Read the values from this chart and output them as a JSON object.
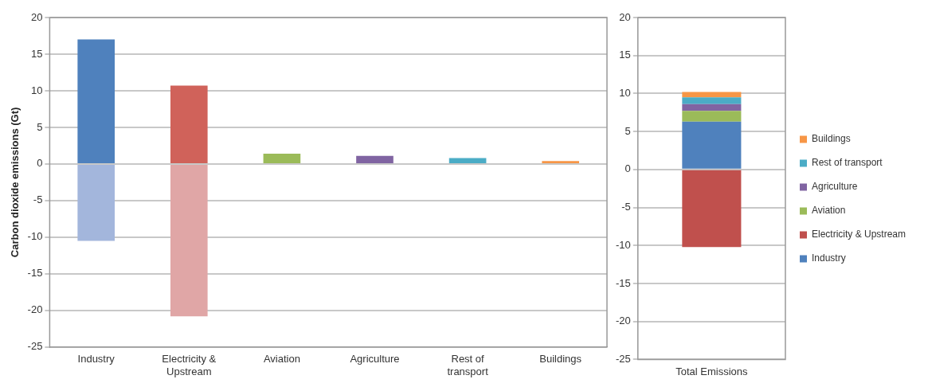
{
  "chart_data": [
    {
      "type": "bar",
      "stacked": true,
      "categories": [
        "Industry",
        "Electricity & Upstream",
        "Aviation",
        "Agriculture",
        "Rest of transport",
        "Buildings"
      ],
      "ylabel": "Carbon dioxide emissions (Gt)",
      "ylim": [
        -25,
        20
      ],
      "yticks": [
        -25,
        -20,
        -15,
        -10,
        -5,
        0,
        5,
        10,
        15,
        20
      ],
      "grid": "y",
      "legend": false,
      "series": [
        {
          "colors": [
            "#4f81bd",
            "#d0625a",
            "#9bbb59",
            "#8064a2",
            "#4bacc6",
            "#f79646"
          ],
          "values": [
            17,
            10.7,
            1.4,
            1.1,
            0.8,
            0.4
          ]
        },
        {
          "colors": [
            "#a3b6dc",
            "#e0a6a6",
            null,
            null,
            null,
            null
          ],
          "values": [
            -10.5,
            -20.8,
            null,
            null,
            null,
            null
          ]
        }
      ]
    },
    {
      "type": "bar",
      "stacked": true,
      "categories": [
        "Total Emissions"
      ],
      "ylim": [
        -25,
        20
      ],
      "yticks": [
        -25,
        -20,
        -15,
        -10,
        -5,
        0,
        5,
        10,
        15,
        20
      ],
      "grid": "y",
      "legend": "right",
      "series": [
        {
          "name": "Industry",
          "color": "#4f81bd",
          "values": [
            6.3
          ]
        },
        {
          "name": "Electricity & Upstream",
          "color": "#c0504d",
          "values": [
            -10.2
          ]
        },
        {
          "name": "Aviation",
          "color": "#9bbb59",
          "values": [
            1.4
          ]
        },
        {
          "name": "Agriculture",
          "color": "#8064a2",
          "values": [
            0.9
          ]
        },
        {
          "name": "Rest of transport",
          "color": "#4bacc6",
          "values": [
            0.9
          ]
        },
        {
          "name": "Buildings",
          "color": "#f79646",
          "values": [
            0.7
          ]
        }
      ]
    }
  ]
}
